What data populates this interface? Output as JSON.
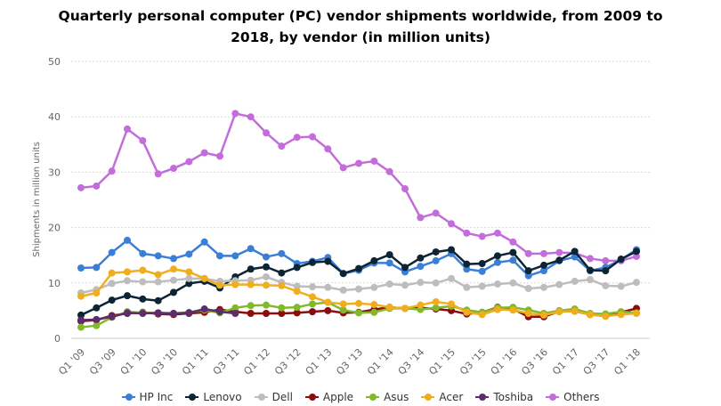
{
  "chart_data": {
    "type": "line",
    "title_line1": "Quarterly personal computer (PC) vendor shipments worldwide, from 2009 to",
    "title_line2": "2018, by vendor (in million units)",
    "xlabel": "",
    "ylabel": "Shipments in million units",
    "ylim": [
      0,
      50
    ],
    "yticks": [
      "0",
      "10",
      "20",
      "30",
      "40",
      "50"
    ],
    "grid": true,
    "legend_position": "bottom",
    "categories": [
      "Q1 '09",
      "Q2 '09",
      "Q3 '09",
      "Q4 '09",
      "Q1 '10",
      "Q2 '10",
      "Q3 '10",
      "Q4 '10",
      "Q1 '11",
      "Q2 '11",
      "Q3 '11",
      "Q4 '11",
      "Q1 '12",
      "Q2 '12",
      "Q3 '12",
      "Q4 '12",
      "Q1 '13",
      "Q2 '13",
      "Q3 '13",
      "Q4 '13",
      "Q1 '14",
      "Q2 '14",
      "Q3 '14",
      "Q4 '14",
      "Q1 '15",
      "Q2 '15",
      "Q3 '15",
      "Q4 '15",
      "Q1 '16",
      "Q2 '16",
      "Q3 '16",
      "Q4 '16",
      "Q1 '17",
      "Q2 '17",
      "Q3 '17",
      "Q4 '17",
      "Q1 '18"
    ],
    "x_tick_labels": [
      "Q1 '09",
      "Q3 '09",
      "Q1 '10",
      "Q3 '10",
      "Q1 '11",
      "Q3 '11",
      "Q1 '12",
      "Q3 '12",
      "Q1 '13",
      "Q3 '13",
      "Q1 '14",
      "Q3 '14",
      "Q1 '15",
      "Q3 '15",
      "Q1 '16",
      "Q3 '16",
      "Q1 '17",
      "Q3 '17",
      "Q1 '18"
    ],
    "series": [
      {
        "name": "Others",
        "color": "#c36ddb",
        "values": [
          27.2,
          27.5,
          30.2,
          37.8,
          35.7,
          29.7,
          30.7,
          31.9,
          33.5,
          32.9,
          40.6,
          40.0,
          37.1,
          34.7,
          36.3,
          36.4,
          34.2,
          30.8,
          31.6,
          32.0,
          30.1,
          27.0,
          21.8,
          22.6,
          20.7,
          19.0,
          18.4,
          19.0,
          17.4,
          15.3,
          15.3,
          15.5,
          15.4,
          14.4,
          14.0,
          14.0,
          14.8
        ]
      },
      {
        "name": "HP Inc",
        "color": "#3a7fd5",
        "values": [
          12.7,
          12.8,
          15.5,
          17.7,
          15.3,
          14.9,
          14.4,
          15.2,
          17.4,
          14.9,
          14.9,
          16.2,
          14.7,
          15.3,
          13.5,
          13.9,
          14.6,
          11.7,
          12.3,
          13.6,
          13.6,
          12.0,
          13.0,
          14.0,
          15.3,
          12.5,
          12.1,
          13.7,
          14.1,
          11.3,
          12.2,
          14.0,
          14.7,
          12.2,
          12.8,
          14.2,
          16.0
        ]
      },
      {
        "name": "Lenovo",
        "color": "#0d2435",
        "values": [
          4.2,
          5.5,
          6.9,
          7.7,
          7.1,
          6.8,
          8.3,
          9.9,
          10.3,
          9.1,
          11.1,
          12.5,
          12.9,
          11.8,
          12.8,
          13.7,
          13.9,
          11.7,
          12.6,
          14.0,
          15.1,
          12.8,
          14.5,
          15.6,
          16.0,
          13.4,
          13.5,
          14.9,
          15.5,
          12.2,
          13.2,
          14.1,
          15.7,
          12.3,
          12.2,
          14.3,
          15.7
        ]
      },
      {
        "name": "Dell",
        "color": "#bdbdbd",
        "values": [
          8.2,
          8.8,
          9.9,
          10.4,
          10.2,
          10.2,
          10.5,
          10.8,
          10.8,
          10.3,
          10.4,
          10.5,
          11.1,
          10.1,
          9.4,
          9.3,
          9.2,
          8.7,
          8.9,
          9.2,
          9.8,
          9.6,
          10.1,
          10.0,
          10.8,
          9.2,
          9.4,
          9.8,
          10.0,
          9.0,
          9.2,
          9.7,
          10.3,
          10.6,
          9.5,
          9.4,
          10.1
        ]
      },
      {
        "name": "Apple",
        "color": "#8b0d0d",
        "values": [
          3.1,
          3.3,
          4.1,
          4.5,
          4.7,
          4.4,
          4.3,
          4.5,
          4.7,
          5.2,
          4.8,
          4.5,
          4.5,
          4.5,
          4.6,
          4.8,
          5.0,
          4.6,
          4.7,
          5.2,
          5.6,
          5.4,
          5.5,
          5.3,
          5.0,
          4.4,
          4.7,
          5.6,
          5.3,
          3.9,
          3.9,
          4.9,
          4.9,
          4.3,
          4.0,
          4.7,
          5.4
        ]
      },
      {
        "name": "Asus",
        "color": "#82b92a",
        "values": [
          2.0,
          2.3,
          3.8,
          4.8,
          4.6,
          4.6,
          4.5,
          4.7,
          5.1,
          4.6,
          5.5,
          5.9,
          6.0,
          5.5,
          5.6,
          6.2,
          6.5,
          5.1,
          4.6,
          4.7,
          5.4,
          5.4,
          5.2,
          5.5,
          5.8,
          5.1,
          4.7,
          5.5,
          5.6,
          5.1,
          4.5,
          5.0,
          5.3,
          4.5,
          4.4,
          4.8,
          4.6
        ]
      },
      {
        "name": "Acer",
        "color": "#f0ae1e",
        "values": [
          7.6,
          8.2,
          11.8,
          12.0,
          12.3,
          11.5,
          12.5,
          12.0,
          10.8,
          9.6,
          9.7,
          9.7,
          9.6,
          9.5,
          8.5,
          7.5,
          6.5,
          6.2,
          6.3,
          6.1,
          5.6,
          5.4,
          6.0,
          6.6,
          6.2,
          4.7,
          4.3,
          5.2,
          5.1,
          4.5,
          4.2,
          4.8,
          4.9,
          4.3,
          4.0,
          4.3,
          4.5
        ]
      },
      {
        "name": "Toshiba",
        "color": "#5c2d6c",
        "values": [
          3.3,
          3.4,
          3.9,
          4.6,
          4.5,
          4.6,
          4.5,
          4.6,
          5.3,
          4.8,
          4.5,
          null,
          null,
          null,
          null,
          null,
          null,
          null,
          null,
          null,
          null,
          null,
          null,
          null,
          null,
          null,
          null,
          null,
          null,
          null,
          null,
          null,
          null,
          null,
          null,
          null,
          null
        ]
      }
    ],
    "legend_order": [
      "HP Inc",
      "Lenovo",
      "Dell",
      "Apple",
      "Asus",
      "Acer",
      "Toshiba",
      "Others"
    ]
  }
}
